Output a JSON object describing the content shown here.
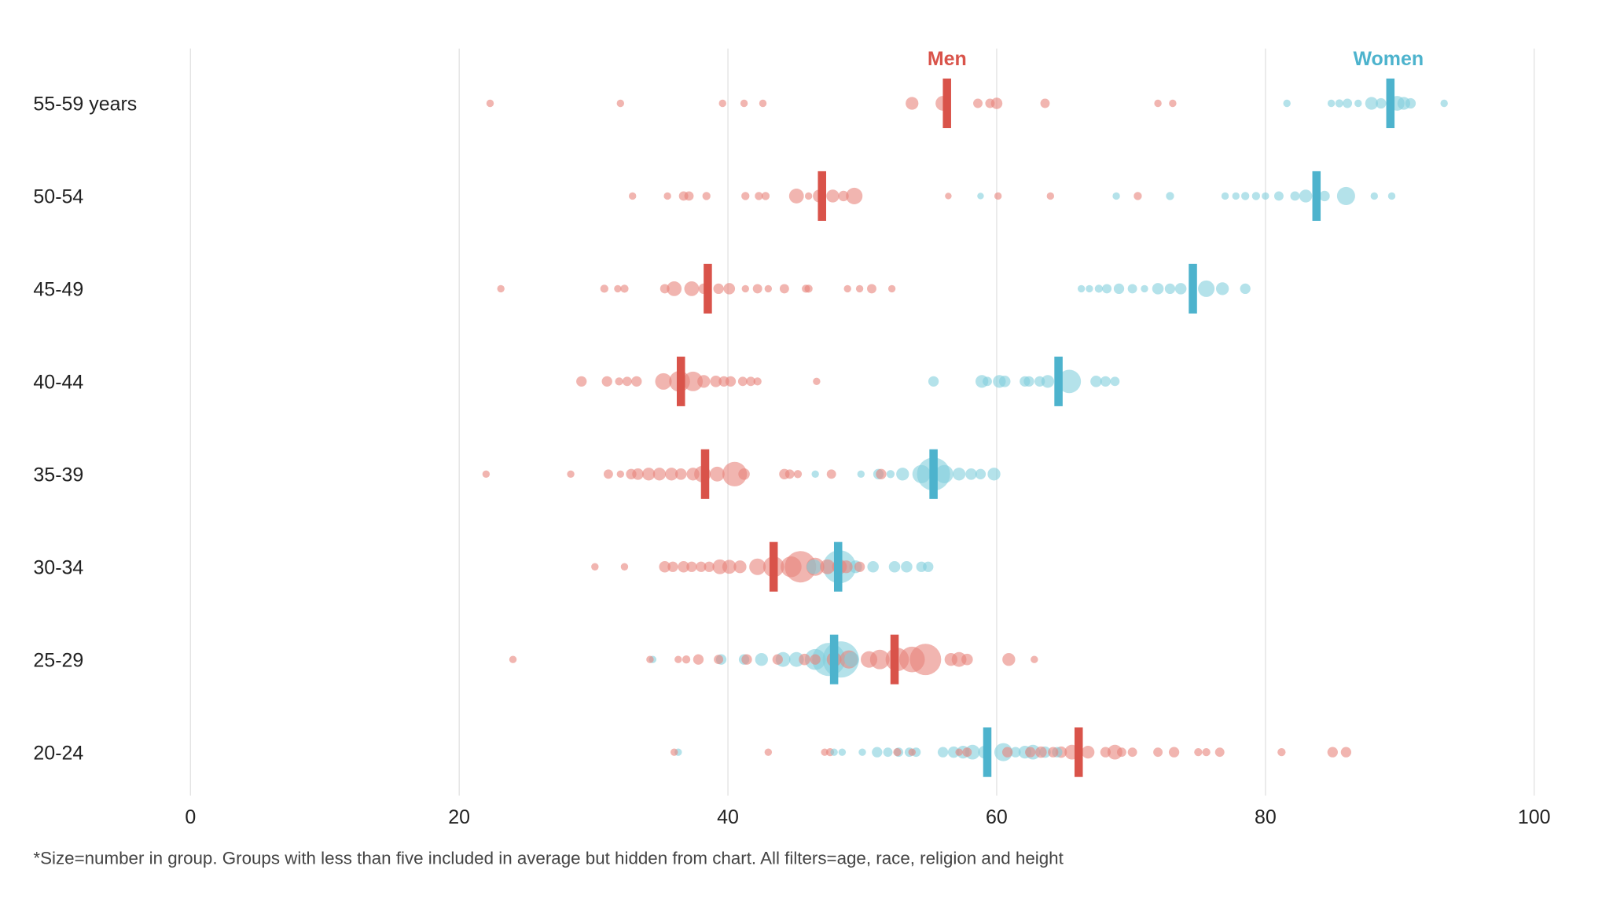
{
  "chart_data": {
    "type": "scatter",
    "title": "",
    "xlabel": "",
    "ylabel": "",
    "xlim": [
      0,
      100
    ],
    "x_ticks": [
      "0",
      "20",
      "40",
      "60",
      "80",
      "100"
    ],
    "x_tick_values": [
      0,
      20,
      40,
      60,
      80,
      100
    ],
    "grid": true,
    "legend": {
      "men": "Men",
      "women": "Women",
      "placement": "top, above the first row's averages"
    },
    "colors": {
      "men_bar": "#d9534a",
      "men_dot": "#e8837c",
      "women_bar": "#4db3cd",
      "women_dot": "#82cfdc"
    },
    "footnote": "*Size=number in group. Groups with less than five included in average but hidden from chart. All filters=age, race, religion and height",
    "rows": [
      {
        "label": "55-59 years",
        "men_avg": 56.3,
        "women_avg": 89.3,
        "men": [
          [
            22.3,
            5
          ],
          [
            32,
            5
          ],
          [
            39.6,
            5
          ],
          [
            41.2,
            5
          ],
          [
            42.6,
            5
          ],
          [
            53.7,
            15
          ],
          [
            56,
            20
          ],
          [
            58.6,
            8
          ],
          [
            59.5,
            8
          ],
          [
            60,
            12
          ],
          [
            63.6,
            8
          ],
          [
            72,
            5
          ],
          [
            73.1,
            5
          ]
        ],
        "women": [
          [
            81.6,
            5
          ],
          [
            84.9,
            5
          ],
          [
            85.5,
            6
          ],
          [
            86.1,
            8
          ],
          [
            86.9,
            5
          ],
          [
            87.9,
            15
          ],
          [
            88.6,
            10
          ],
          [
            89.8,
            20
          ],
          [
            90.3,
            15
          ],
          [
            90.8,
            10
          ],
          [
            93.3,
            5
          ]
        ]
      },
      {
        "label": "50-54",
        "men_avg": 47,
        "women_avg": 83.8,
        "men": [
          [
            32.9,
            5
          ],
          [
            35.5,
            5
          ],
          [
            36.7,
            8
          ],
          [
            37.1,
            8
          ],
          [
            38.4,
            6
          ],
          [
            41.3,
            6
          ],
          [
            42.3,
            6
          ],
          [
            42.8,
            6
          ],
          [
            45.1,
            20
          ],
          [
            46,
            5
          ],
          [
            46.8,
            15
          ],
          [
            47.8,
            15
          ],
          [
            48.6,
            10
          ],
          [
            49.4,
            25
          ],
          [
            56.4,
            4
          ],
          [
            60.1,
            5
          ],
          [
            64,
            5
          ],
          [
            70.5,
            6
          ]
        ],
        "women": [
          [
            58.8,
            4
          ],
          [
            68.9,
            5
          ],
          [
            72.9,
            6
          ],
          [
            77,
            5
          ],
          [
            77.8,
            5
          ],
          [
            78.5,
            6
          ],
          [
            79.3,
            6
          ],
          [
            80,
            5
          ],
          [
            81,
            8
          ],
          [
            82.2,
            8
          ],
          [
            83,
            15
          ],
          [
            84.4,
            10
          ],
          [
            86,
            30
          ],
          [
            88.1,
            5
          ],
          [
            89.4,
            5
          ]
        ]
      },
      {
        "label": "45-49",
        "men_avg": 38.5,
        "women_avg": 74.6,
        "men": [
          [
            23.1,
            5
          ],
          [
            30.8,
            6
          ],
          [
            31.8,
            5
          ],
          [
            32.3,
            6
          ],
          [
            35.3,
            8
          ],
          [
            36,
            20
          ],
          [
            37.3,
            20
          ],
          [
            38.2,
            10
          ],
          [
            39.3,
            10
          ],
          [
            40.1,
            12
          ],
          [
            41.3,
            5
          ],
          [
            42.2,
            8
          ],
          [
            43,
            5
          ],
          [
            44.2,
            8
          ],
          [
            45.8,
            6
          ],
          [
            46,
            6
          ],
          [
            48.9,
            5
          ],
          [
            49.8,
            5
          ],
          [
            50.7,
            8
          ],
          [
            52.2,
            5
          ]
        ],
        "women": [
          [
            66.3,
            5
          ],
          [
            66.9,
            5
          ],
          [
            67.6,
            6
          ],
          [
            68.2,
            8
          ],
          [
            69.1,
            10
          ],
          [
            70.1,
            8
          ],
          [
            71,
            5
          ],
          [
            72,
            12
          ],
          [
            72.9,
            10
          ],
          [
            73.7,
            12
          ],
          [
            75.6,
            25
          ],
          [
            76.8,
            15
          ],
          [
            78.5,
            10
          ]
        ]
      },
      {
        "label": "40-44",
        "men_avg": 36.5,
        "women_avg": 64.6,
        "men": [
          [
            29.1,
            10
          ],
          [
            31,
            10
          ],
          [
            31.9,
            6
          ],
          [
            32.5,
            8
          ],
          [
            33.2,
            10
          ],
          [
            35.2,
            25
          ],
          [
            36.4,
            40
          ],
          [
            37.4,
            35
          ],
          [
            38.2,
            15
          ],
          [
            39.1,
            12
          ],
          [
            39.7,
            10
          ],
          [
            40.2,
            10
          ],
          [
            41.1,
            8
          ],
          [
            41.7,
            8
          ],
          [
            42.2,
            6
          ],
          [
            46.6,
            5
          ]
        ],
        "women": [
          [
            55.3,
            10
          ],
          [
            58.9,
            15
          ],
          [
            59.3,
            8
          ],
          [
            60.2,
            15
          ],
          [
            60.6,
            12
          ],
          [
            62.1,
            10
          ],
          [
            62.4,
            10
          ],
          [
            63.2,
            10
          ],
          [
            63.8,
            15
          ],
          [
            65.4,
            50
          ],
          [
            67.4,
            12
          ],
          [
            68.1,
            10
          ],
          [
            68.8,
            8
          ]
        ]
      },
      {
        "label": "35-39",
        "men_avg": 38.3,
        "women_avg": 55.3,
        "men": [
          [
            22,
            5
          ],
          [
            28.3,
            5
          ],
          [
            31.1,
            8
          ],
          [
            32,
            5
          ],
          [
            32.8,
            10
          ],
          [
            33.3,
            12
          ],
          [
            34.1,
            15
          ],
          [
            34.9,
            15
          ],
          [
            35.8,
            15
          ],
          [
            36.5,
            12
          ],
          [
            37.4,
            15
          ],
          [
            38.1,
            25
          ],
          [
            39.2,
            20
          ],
          [
            40.5,
            55
          ],
          [
            41.2,
            12
          ],
          [
            44.2,
            10
          ],
          [
            44.6,
            8
          ],
          [
            45.2,
            6
          ],
          [
            47.7,
            8
          ],
          [
            51.4,
            10
          ]
        ],
        "women": [
          [
            46.5,
            5
          ],
          [
            49.9,
            5
          ],
          [
            51.2,
            10
          ],
          [
            52.1,
            6
          ],
          [
            53,
            15
          ],
          [
            54.4,
            30
          ],
          [
            55.3,
            100
          ],
          [
            56.1,
            30
          ],
          [
            57.2,
            15
          ],
          [
            58.1,
            12
          ],
          [
            58.8,
            10
          ],
          [
            59.8,
            15
          ]
        ]
      },
      {
        "label": "30-34",
        "men_avg": 43.4,
        "women_avg": 48.2,
        "men": [
          [
            30.1,
            5
          ],
          [
            32.3,
            5
          ],
          [
            35.3,
            12
          ],
          [
            35.9,
            10
          ],
          [
            36.7,
            12
          ],
          [
            37.3,
            10
          ],
          [
            38,
            10
          ],
          [
            38.6,
            10
          ],
          [
            39.4,
            20
          ],
          [
            40.1,
            18
          ],
          [
            40.9,
            15
          ],
          [
            42.2,
            25
          ],
          [
            43.4,
            40
          ],
          [
            44.7,
            40
          ],
          [
            45.4,
            90
          ],
          [
            46.5,
            30
          ],
          [
            47.4,
            20
          ],
          [
            48.3,
            20
          ],
          [
            48.8,
            15
          ],
          [
            49.8,
            10
          ]
        ],
        "women": [
          [
            46.4,
            20
          ],
          [
            48.3,
            100
          ],
          [
            49.5,
            15
          ],
          [
            50.8,
            12
          ],
          [
            52.4,
            12
          ],
          [
            53.3,
            12
          ],
          [
            54.4,
            10
          ],
          [
            54.9,
            10
          ]
        ]
      },
      {
        "label": "25-29",
        "men_avg": 52.4,
        "women_avg": 47.9,
        "men": [
          [
            24,
            5
          ],
          [
            34.2,
            5
          ],
          [
            36.3,
            5
          ],
          [
            36.9,
            6
          ],
          [
            37.8,
            10
          ],
          [
            39.3,
            8
          ],
          [
            41.4,
            10
          ],
          [
            43.7,
            10
          ],
          [
            45.7,
            12
          ],
          [
            46.5,
            10
          ],
          [
            47.9,
            20
          ],
          [
            49,
            30
          ],
          [
            50.5,
            25
          ],
          [
            51.3,
            35
          ],
          [
            52.6,
            50
          ],
          [
            53.7,
            60
          ],
          [
            54.7,
            90
          ],
          [
            56.6,
            15
          ],
          [
            57.2,
            20
          ],
          [
            57.8,
            12
          ],
          [
            60.9,
            15
          ],
          [
            62.8,
            5
          ]
        ],
        "women": [
          [
            34.4,
            5
          ],
          [
            39.5,
            10
          ],
          [
            41.2,
            10
          ],
          [
            42.5,
            15
          ],
          [
            44.1,
            20
          ],
          [
            45.1,
            20
          ],
          [
            46.5,
            40
          ],
          [
            47.5,
            100
          ],
          [
            48.4,
            120
          ],
          [
            49.2,
            20
          ]
        ]
      },
      {
        "label": "20-24",
        "men_avg": 66.1,
        "women_avg": 59.3,
        "men": [
          [
            36,
            5
          ],
          [
            43,
            5
          ],
          [
            47.2,
            5
          ],
          [
            47.6,
            6
          ],
          [
            52.6,
            6
          ],
          [
            53.7,
            5
          ],
          [
            57.2,
            5
          ],
          [
            57.8,
            8
          ],
          [
            60.8,
            10
          ],
          [
            62.5,
            10
          ],
          [
            63.3,
            12
          ],
          [
            64.2,
            10
          ],
          [
            64.8,
            12
          ],
          [
            65.6,
            20
          ],
          [
            66.8,
            15
          ],
          [
            68.1,
            10
          ],
          [
            68.8,
            20
          ],
          [
            69.3,
            8
          ],
          [
            70.1,
            8
          ],
          [
            72,
            8
          ],
          [
            73.2,
            10
          ],
          [
            75,
            6
          ],
          [
            75.6,
            6
          ],
          [
            76.6,
            8
          ],
          [
            81.2,
            6
          ],
          [
            85,
            10
          ],
          [
            86,
            10
          ]
        ],
        "women": [
          [
            36.3,
            5
          ],
          [
            47.9,
            5
          ],
          [
            48.5,
            5
          ],
          [
            50,
            5
          ],
          [
            51.1,
            10
          ],
          [
            51.9,
            8
          ],
          [
            52.7,
            8
          ],
          [
            53.5,
            8
          ],
          [
            54,
            8
          ],
          [
            56,
            10
          ],
          [
            56.8,
            12
          ],
          [
            57.5,
            15
          ],
          [
            58.2,
            20
          ],
          [
            59.1,
            15
          ],
          [
            60.5,
            30
          ],
          [
            61.4,
            10
          ],
          [
            62.1,
            15
          ],
          [
            62.7,
            20
          ],
          [
            63.6,
            12
          ],
          [
            64.5,
            10
          ]
        ]
      }
    ]
  }
}
